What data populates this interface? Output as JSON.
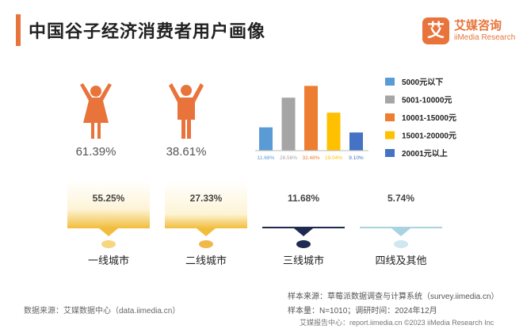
{
  "header": {
    "title": "中国谷子经济消费者用户画像",
    "logo_mark": "艾",
    "logo_cn": "艾媒咨询",
    "logo_en": "iiMedia Research"
  },
  "colors": {
    "accent": "#e8743b",
    "female": "#e8743b",
    "male": "#e8743b",
    "city_highlight": [
      "#f2bd3c",
      "#f2bd3c",
      "#1f2a52",
      "#a9d3e2"
    ]
  },
  "chart_data": [
    {
      "type": "bar",
      "title": "",
      "categories": [
        "5000元以下",
        "5001-10000元",
        "10001-15000元",
        "15001-20000元",
        "20001元以上"
      ],
      "values": [
        11.68,
        26.56,
        32.48,
        19.04,
        9.1
      ],
      "value_labels": [
        "11.68%",
        "26.56%",
        "32.48%",
        "19.04%",
        "9.10%"
      ],
      "colors": [
        "#5b9bd5",
        "#a5a5a5",
        "#ed7d31",
        "#ffc000",
        "#4472c4"
      ],
      "legend": "right",
      "ylim": [
        0,
        35
      ],
      "grid": false
    },
    {
      "type": "pictogram",
      "categories": [
        "female",
        "male"
      ],
      "values": [
        61.39,
        38.61
      ],
      "value_labels": [
        "61.39%",
        "38.61%"
      ]
    },
    {
      "type": "bar",
      "categories": [
        "一线城市",
        "二线城市",
        "三线城市",
        "四线及其他"
      ],
      "values": [
        55.25,
        27.33,
        11.68,
        5.74
      ],
      "value_labels": [
        "55.25%",
        "27.33%",
        "11.68%",
        "5.74%"
      ],
      "ylim": [
        0,
        100
      ]
    }
  ],
  "footer": {
    "source_left": "数据来源：艾媒数据中心（data.iimedia.cn）",
    "source_right_1": "样本来源：草莓派数据调查与计算系统（survey.iimedia.cn）",
    "source_right_2": "样本量：N=1010；调研时间：2024年12月",
    "source_right_3": "艾媒报告中心：report.iimedia.cn  ©2023  iiMedia Research  Inc"
  }
}
